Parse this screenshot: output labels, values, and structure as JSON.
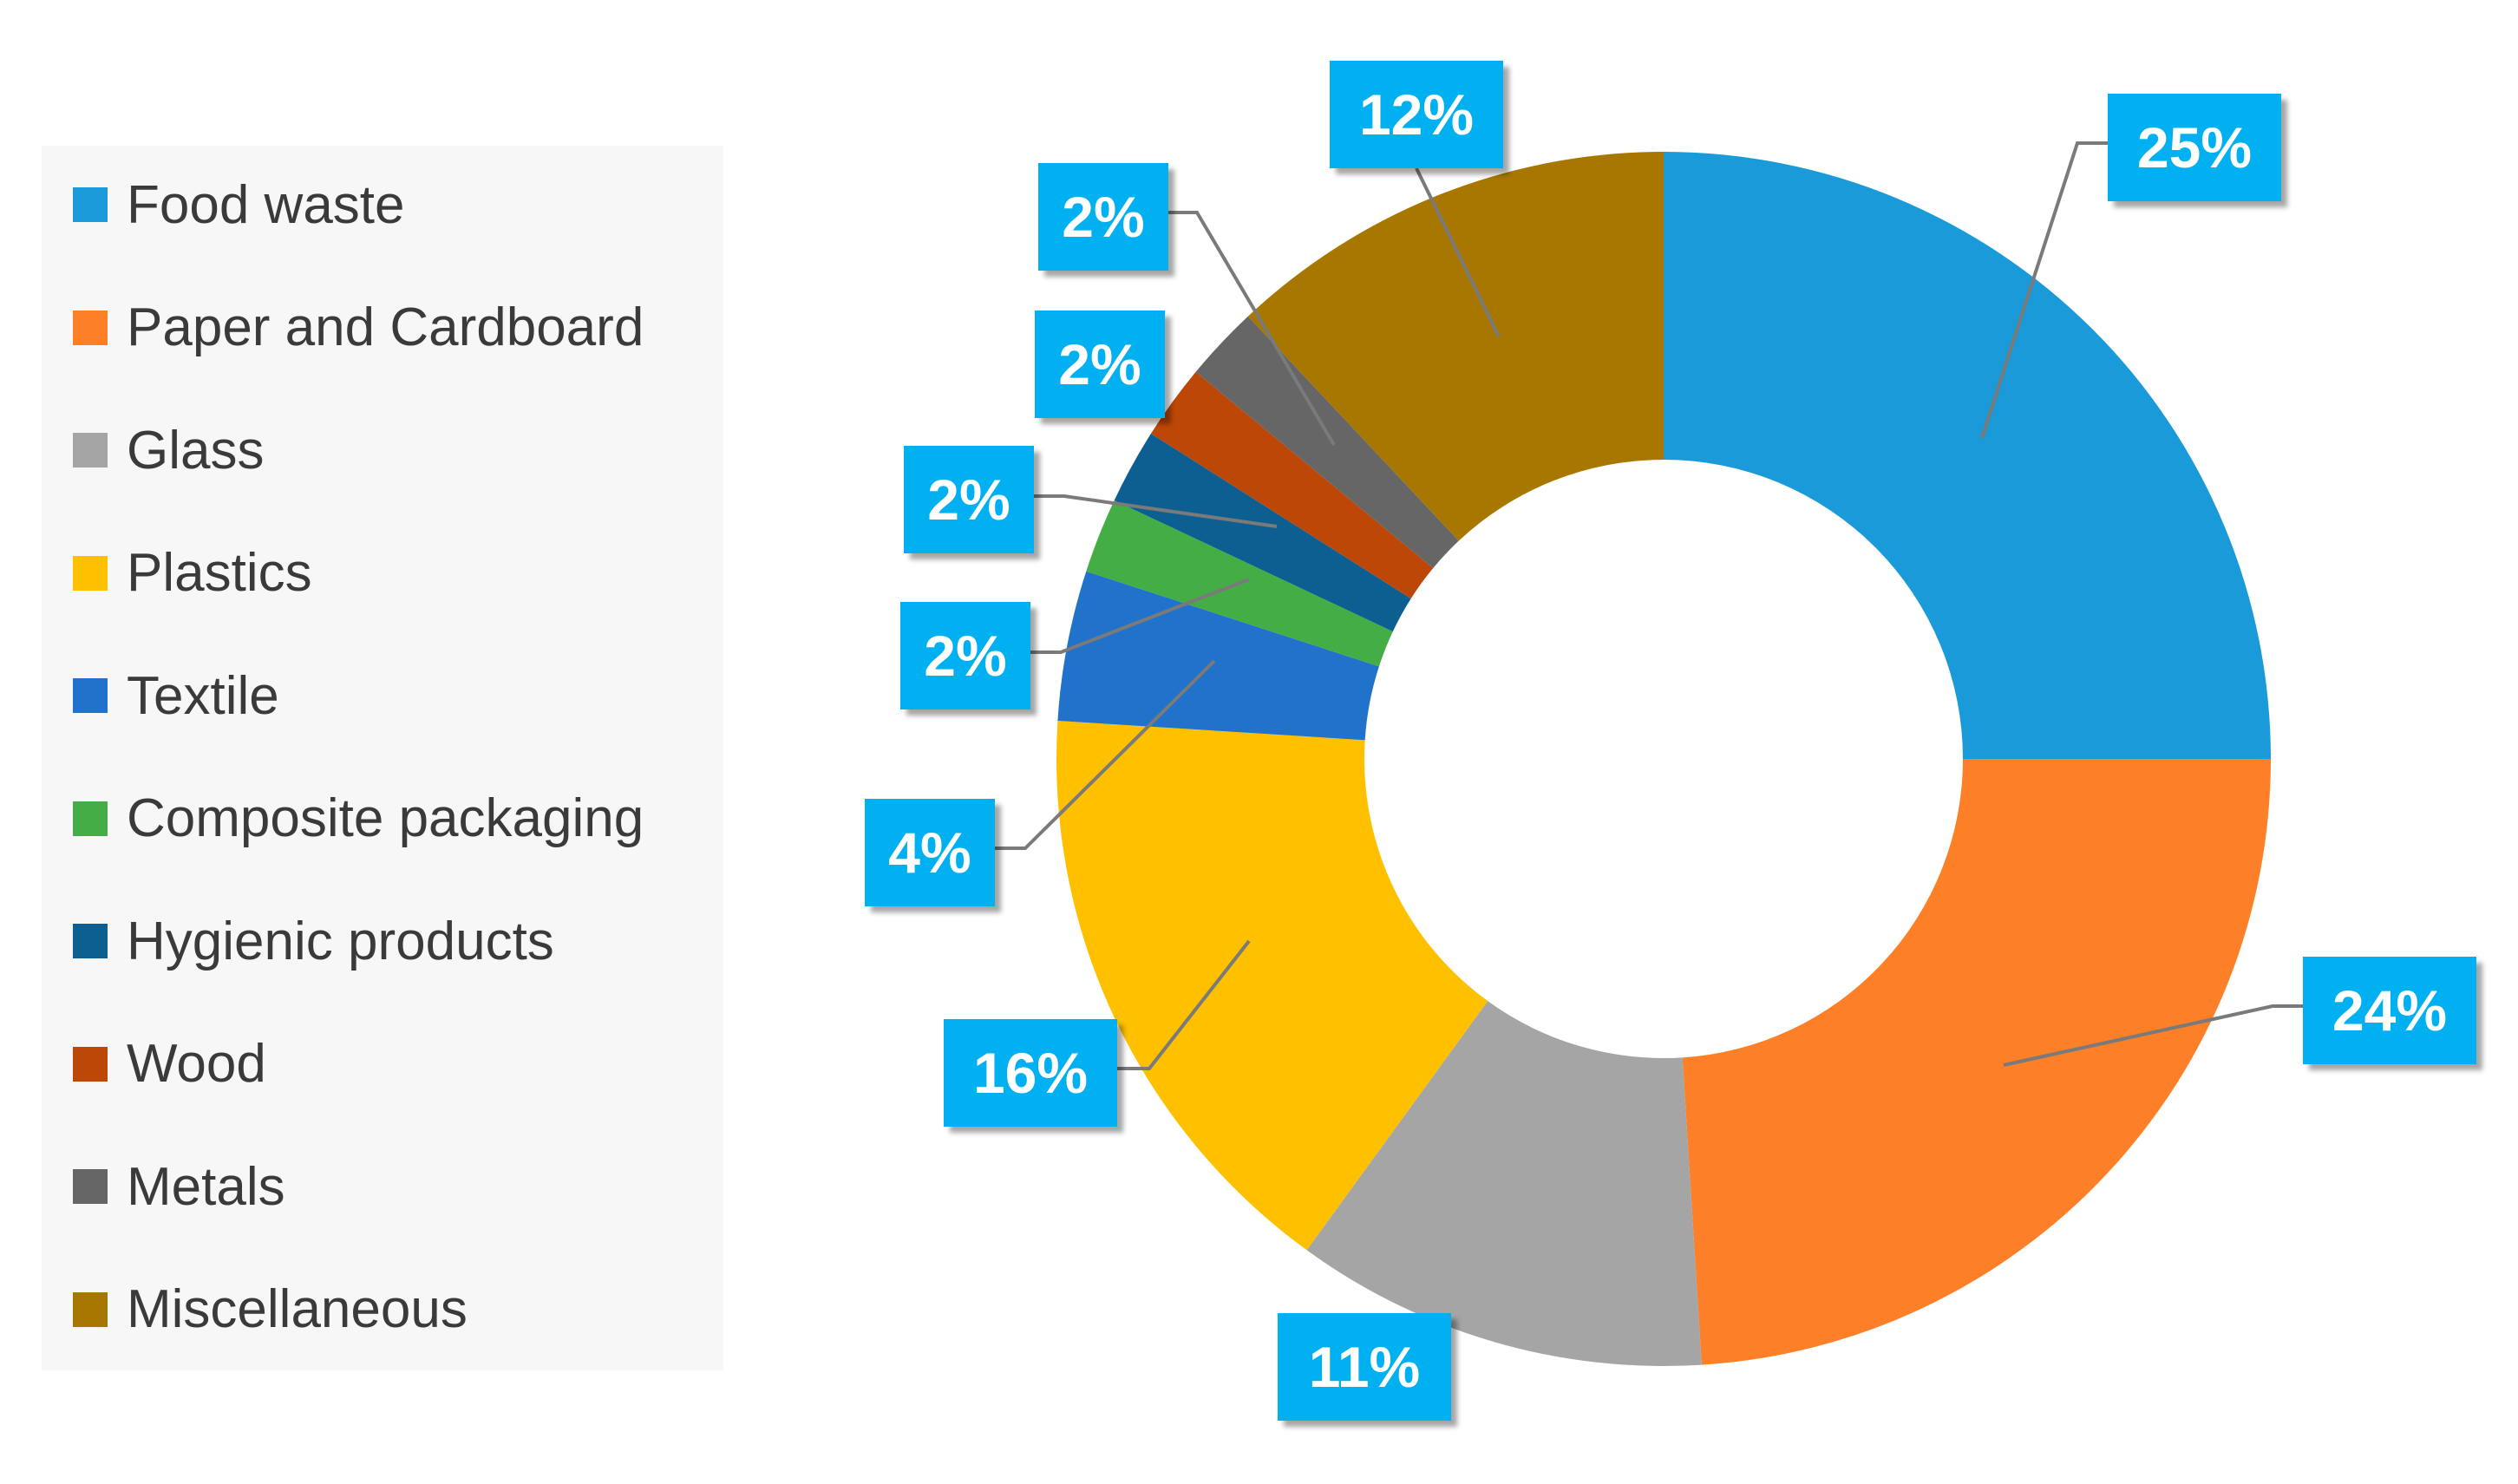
{
  "chart_data": {
    "type": "pie",
    "variant": "doughnut",
    "title": "",
    "legend_position": "left",
    "categories": [
      "Food waste",
      "Paper and Cardboard",
      "Glass",
      "Plastics",
      "Textile",
      "Composite packaging",
      "Hygienic products",
      "Wood",
      "Metals",
      "Miscellaneous"
    ],
    "values": [
      25,
      24,
      11,
      16,
      4,
      2,
      2,
      2,
      2,
      12
    ],
    "data_labels": [
      "25%",
      "24%",
      "11%",
      "16%",
      "4%",
      "2%",
      "2%",
      "2%",
      "2%",
      "12%"
    ],
    "colors": [
      "#1b9ad9",
      "#fd7f27",
      "#a5a5a5",
      "#ffc000",
      "#2172cb",
      "#44ad45",
      "#0d5f92",
      "#bd4706",
      "#666666",
      "#a87700"
    ],
    "label_box_color": "#00b0f0",
    "leader_line_color": "#7a7a7a"
  }
}
